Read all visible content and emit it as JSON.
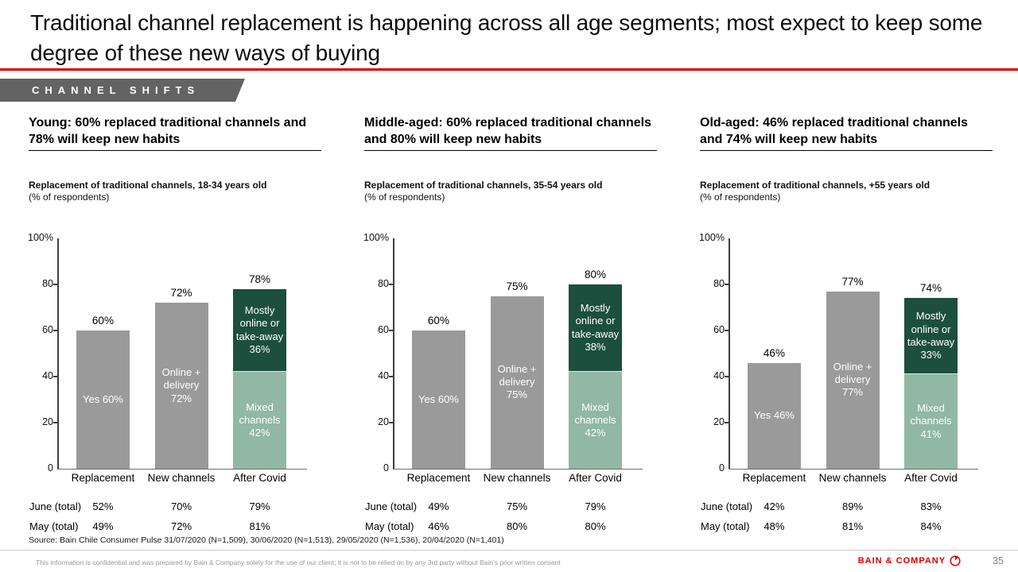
{
  "slide": {
    "title": "Traditional channel replacement is happening across all age segments; most expect to keep some degree of these new ways of buying",
    "tag_label": "CHANNEL SHIFTS",
    "source": "Source: Bain Chile Consumer Pulse 31/07/2020 (N=1,509), 30/06/2020 (N=1,513), 29/05/2020 (N=1,536), 20/04/2020 (N=1,401)",
    "footer_disclaimer": "This information is confidential and was prepared by Bain & Company solely for the use of our client; it is not to be relied on by any 3rd party without Bain's prior written consent",
    "brand": "BAIN & COMPANY",
    "page_number": "35"
  },
  "labels": {
    "june": "June (total)",
    "may": "May (total)"
  },
  "colors": {
    "accent_red": "#d40000",
    "bar_gray": "#9a9a9a",
    "dark_green": "#1c4f3e",
    "light_green": "#90b8a4",
    "tag_bg": "#636363"
  },
  "chart_data": [
    {
      "type": "bar",
      "header": "Young: 60% replaced traditional channels and 78% will keep new habits",
      "title": "Replacement of traditional channels, 18-34 years old",
      "subtitle": "(% of respondents)",
      "ylim": [
        0,
        100
      ],
      "yticks": [
        {
          "label": "100%",
          "value": 100
        },
        {
          "label": "80",
          "value": 80
        },
        {
          "label": "60",
          "value": 60
        },
        {
          "label": "40",
          "value": 40
        },
        {
          "label": "20",
          "value": 20
        },
        {
          "label": "0",
          "value": 0
        }
      ],
      "categories": [
        "Replacement",
        "New channels",
        "After Covid"
      ],
      "bars": [
        {
          "category": "Replacement",
          "total": 60,
          "total_label": "60%",
          "segments": [
            {
              "name": "Yes",
              "value": 60,
              "label": "Yes 60%",
              "color_key": "bar_gray"
            }
          ]
        },
        {
          "category": "New channels",
          "total": 72,
          "total_label": "72%",
          "segments": [
            {
              "name": "Online + delivery",
              "value": 72,
              "label": "Online +\ndelivery\n72%",
              "color_key": "bar_gray"
            }
          ]
        },
        {
          "category": "After Covid",
          "total": 78,
          "total_label": "78%",
          "segments": [
            {
              "name": "Mixed channels",
              "value": 42,
              "label": "Mixed\nchannels\n42%",
              "color_key": "light_green"
            },
            {
              "name": "Mostly online or take-away",
              "value": 36,
              "label": "Mostly\nonline or\ntake-away\n36%",
              "color_key": "dark_green"
            }
          ]
        }
      ],
      "totals": {
        "june": [
          "52%",
          "70%",
          "79%"
        ],
        "may": [
          "49%",
          "72%",
          "81%"
        ]
      }
    },
    {
      "type": "bar",
      "header": "Middle-aged: 60% replaced traditional channels and 80% will keep new habits",
      "title": "Replacement of traditional channels, 35-54 years old",
      "subtitle": "(% of respondents)",
      "ylim": [
        0,
        100
      ],
      "yticks": [
        {
          "label": "100%",
          "value": 100
        },
        {
          "label": "80",
          "value": 80
        },
        {
          "label": "60",
          "value": 60
        },
        {
          "label": "40",
          "value": 40
        },
        {
          "label": "20",
          "value": 20
        },
        {
          "label": "0",
          "value": 0
        }
      ],
      "categories": [
        "Replacement",
        "New channels",
        "After Covid"
      ],
      "bars": [
        {
          "category": "Replacement",
          "total": 60,
          "total_label": "60%",
          "segments": [
            {
              "name": "Yes",
              "value": 60,
              "label": "Yes 60%",
              "color_key": "bar_gray"
            }
          ]
        },
        {
          "category": "New channels",
          "total": 75,
          "total_label": "75%",
          "segments": [
            {
              "name": "Online + delivery",
              "value": 75,
              "label": "Online +\ndelivery\n75%",
              "color_key": "bar_gray"
            }
          ]
        },
        {
          "category": "After Covid",
          "total": 80,
          "total_label": "80%",
          "segments": [
            {
              "name": "Mixed channels",
              "value": 42,
              "label": "Mixed\nchannels\n42%",
              "color_key": "light_green"
            },
            {
              "name": "Mostly online or take-away",
              "value": 38,
              "label": "Mostly\nonline or\ntake-away\n38%",
              "color_key": "dark_green"
            }
          ]
        }
      ],
      "totals": {
        "june": [
          "49%",
          "75%",
          "79%"
        ],
        "may": [
          "46%",
          "80%",
          "80%"
        ]
      }
    },
    {
      "type": "bar",
      "header": "Old-aged: 46% replaced traditional channels and 74% will keep new habits",
      "title": "Replacement of traditional channels, +55 years old",
      "subtitle": "(% of respondents)",
      "ylim": [
        0,
        100
      ],
      "yticks": [
        {
          "label": "100%",
          "value": 100
        },
        {
          "label": "80",
          "value": 80
        },
        {
          "label": "60",
          "value": 60
        },
        {
          "label": "40",
          "value": 40
        },
        {
          "label": "20",
          "value": 20
        },
        {
          "label": "0",
          "value": 0
        }
      ],
      "categories": [
        "Replacement",
        "New channels",
        "After Covid"
      ],
      "bars": [
        {
          "category": "Replacement",
          "total": 46,
          "total_label": "46%",
          "segments": [
            {
              "name": "Yes",
              "value": 46,
              "label": "Yes 46%",
              "color_key": "bar_gray"
            }
          ]
        },
        {
          "category": "New channels",
          "total": 77,
          "total_label": "77%",
          "segments": [
            {
              "name": "Online + delivery",
              "value": 77,
              "label": "Online +\ndelivery\n77%",
              "color_key": "bar_gray"
            }
          ]
        },
        {
          "category": "After Covid",
          "total": 74,
          "total_label": "74%",
          "segments": [
            {
              "name": "Mixed channels",
              "value": 41,
              "label": "Mixed\nchannels\n41%",
              "color_key": "light_green"
            },
            {
              "name": "Mostly online or take-away",
              "value": 33,
              "label": "Mostly\nonline or\ntake-away\n33%",
              "color_key": "dark_green"
            }
          ]
        }
      ],
      "totals": {
        "june": [
          "42%",
          "89%",
          "83%"
        ],
        "may": [
          "48%",
          "81%",
          "84%"
        ]
      }
    }
  ]
}
